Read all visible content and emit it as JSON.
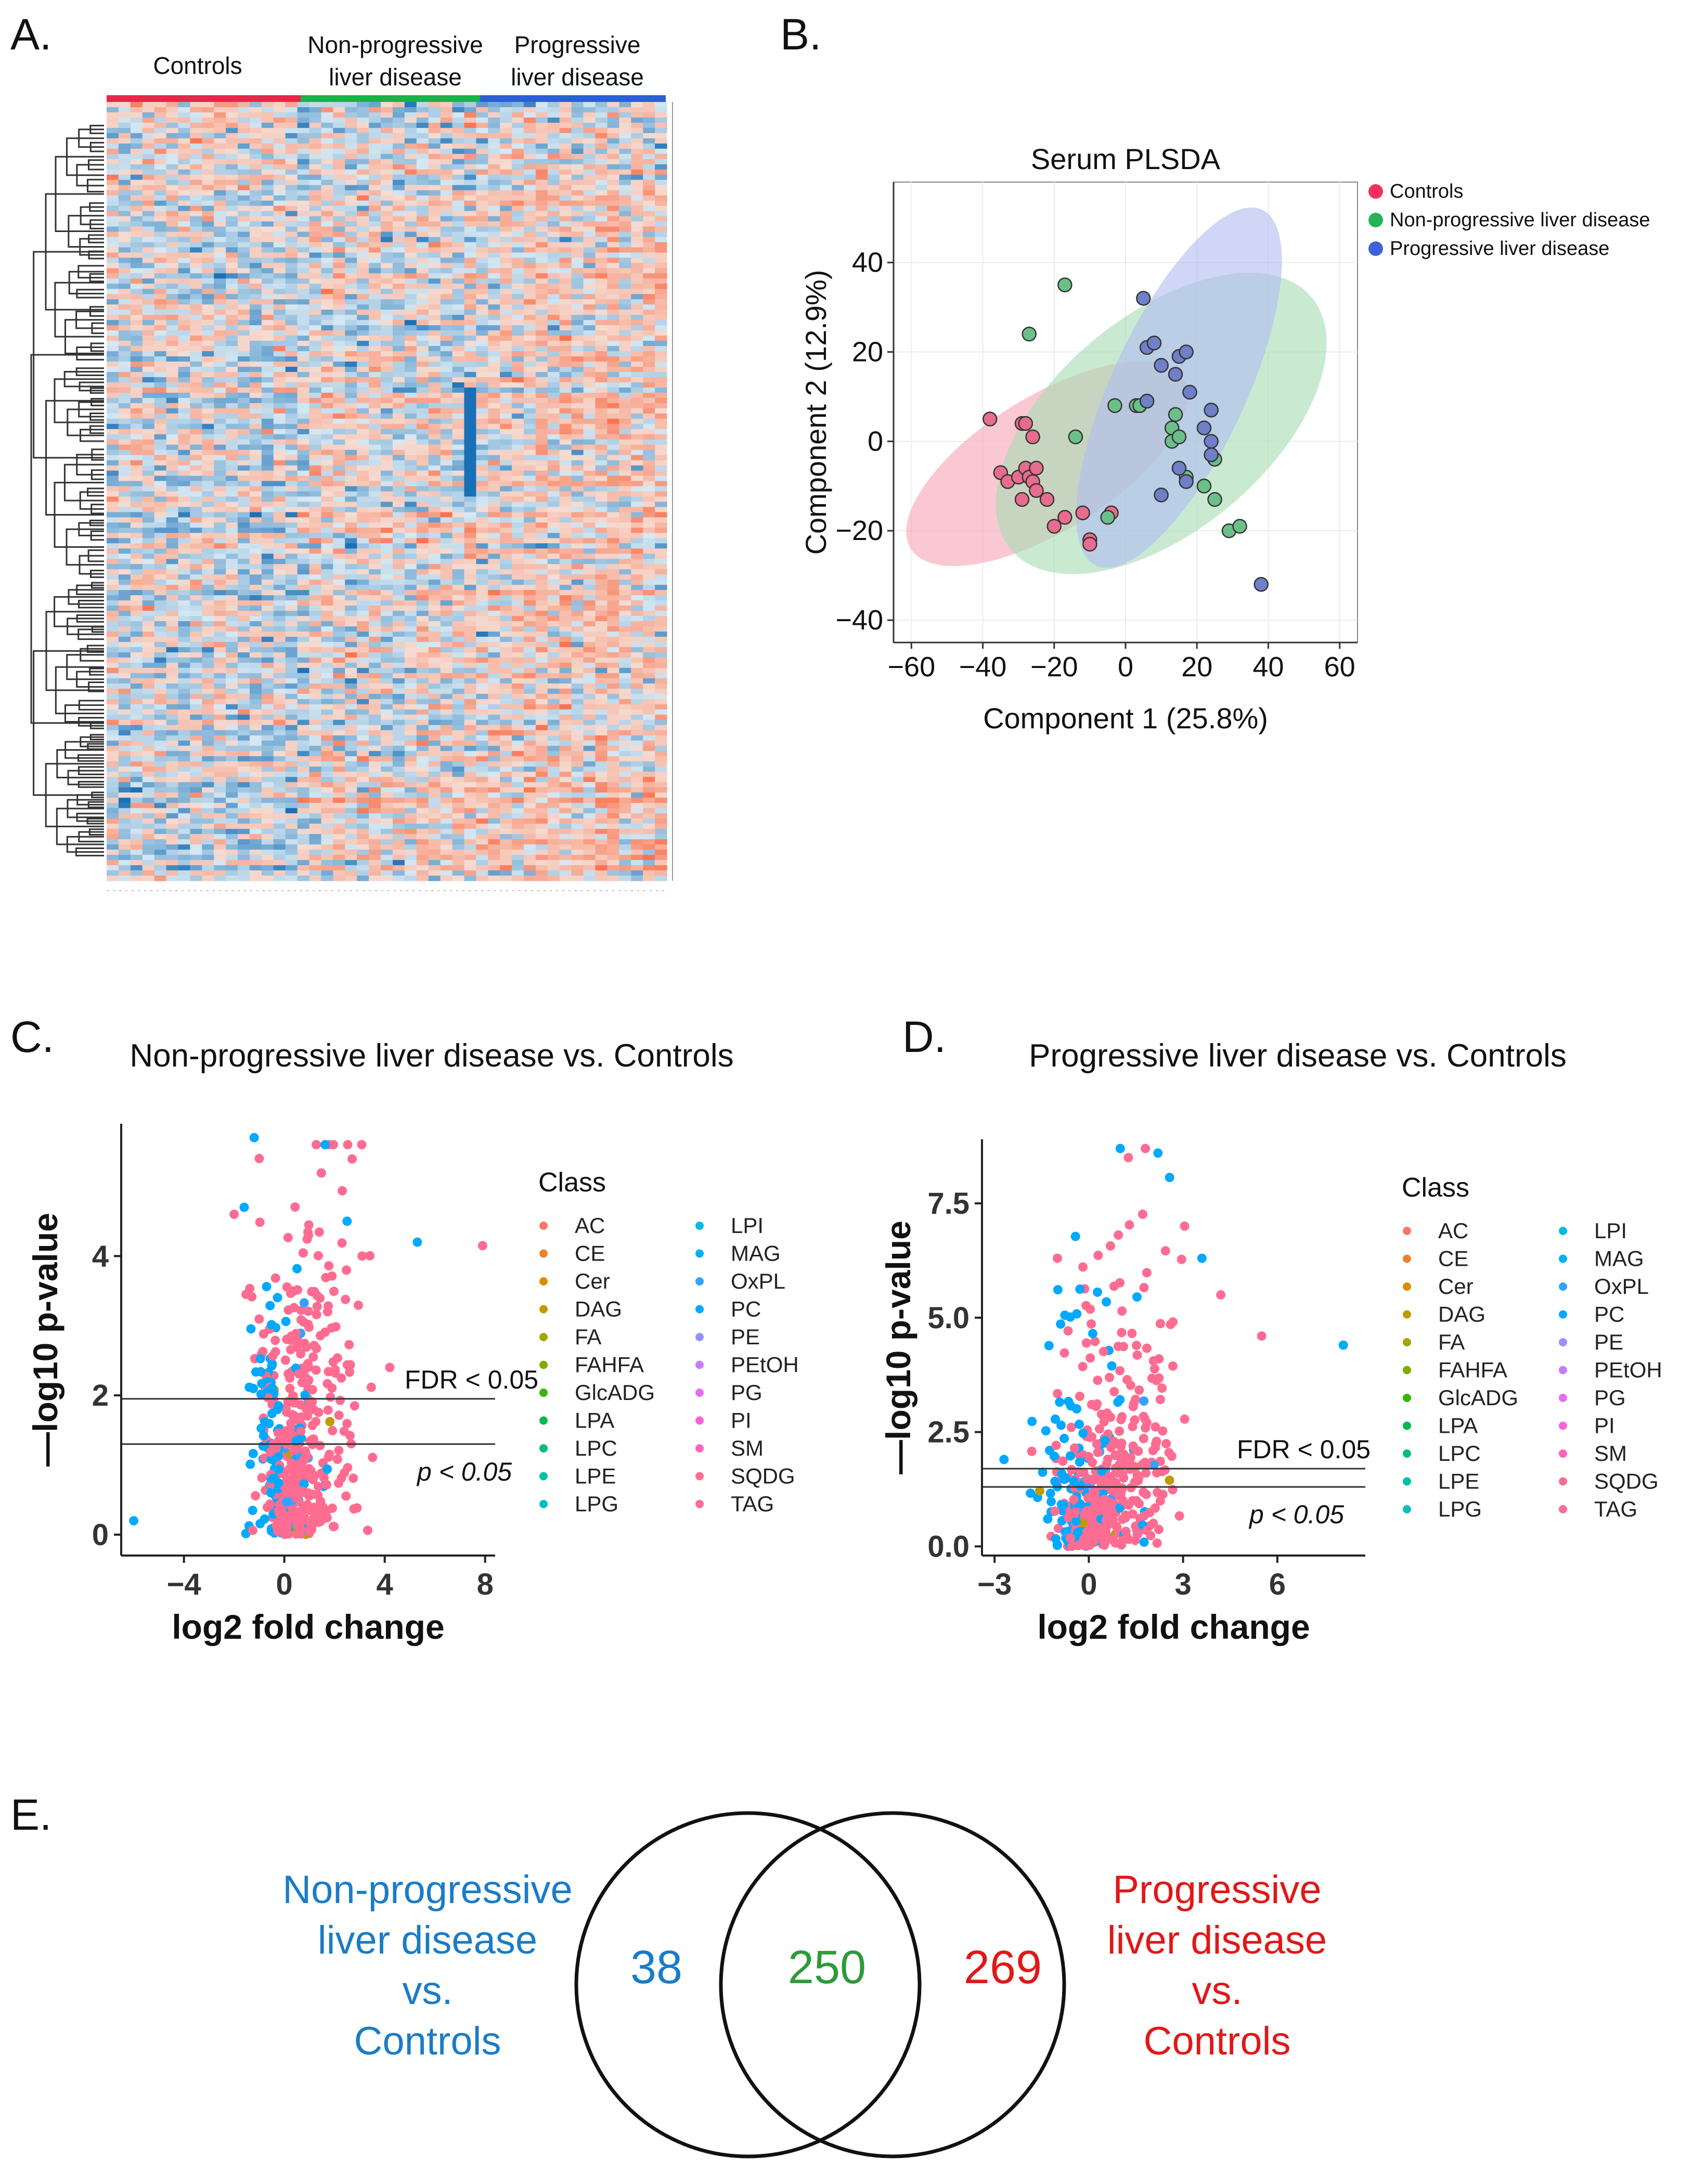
{
  "panels": {
    "a": {
      "label": "A.",
      "groups": [
        "Controls",
        "Non-progressive\nliver disease",
        "Progressive\nliver disease"
      ],
      "colors": [
        "#e8264a",
        "#1bb04a",
        "#2b5fd6"
      ]
    },
    "b": {
      "label": "B."
    },
    "c": {
      "label": "C."
    },
    "d": {
      "label": "D."
    },
    "e": {
      "label": "E."
    }
  },
  "chart_data": [
    {
      "id": "B",
      "type": "scatter",
      "title": "Serum PLSDA",
      "xlabel": "Component 1 (25.8%)",
      "ylabel": "Component 2 (12.9%)",
      "xlim": [
        -65,
        65
      ],
      "ylim": [
        -45,
        58
      ],
      "xticks": [
        "−60",
        "−40",
        "−20",
        "0",
        "20",
        "40",
        "60"
      ],
      "xtick_values": [
        -60,
        -40,
        -20,
        0,
        20,
        40,
        60
      ],
      "yticks": [
        "−40",
        "−20",
        "0",
        "20",
        "40"
      ],
      "ytick_values": [
        -40,
        -20,
        0,
        20,
        40
      ],
      "legend": [
        {
          "name": "Controls",
          "color": "#f2315f"
        },
        {
          "name": "Non-progressive liver disease",
          "color": "#23b455"
        },
        {
          "name": "Progressive liver disease",
          "color": "#3d63d9"
        }
      ],
      "series": [
        {
          "name": "Controls",
          "color": "#e86c8e",
          "ellipse": {
            "cx": -22,
            "cy": -5,
            "rx": 45,
            "ry": 15,
            "angle": -32
          },
          "points": [
            [
              -38,
              5
            ],
            [
              -29,
              4
            ],
            [
              -28,
              4
            ],
            [
              -26,
              1
            ],
            [
              -35,
              -7
            ],
            [
              -33,
              -9
            ],
            [
              -30,
              -8
            ],
            [
              -28,
              -6
            ],
            [
              -27,
              -8
            ],
            [
              -25,
              -6
            ],
            [
              -26,
              -9
            ],
            [
              -25,
              -11
            ],
            [
              -29,
              -13
            ],
            [
              -22,
              -13
            ],
            [
              -17,
              -17
            ],
            [
              -20,
              -19
            ],
            [
              -10,
              -22
            ],
            [
              -10,
              -23
            ],
            [
              -12,
              -16
            ],
            [
              -4,
              -16
            ]
          ]
        },
        {
          "name": "Non-progressive liver disease",
          "color": "#6bc08a",
          "ellipse": {
            "cx": 10,
            "cy": 4,
            "rx": 55,
            "ry": 24,
            "angle": -40
          },
          "points": [
            [
              -17,
              35
            ],
            [
              -27,
              24
            ],
            [
              -14,
              1
            ],
            [
              -3,
              8
            ],
            [
              3,
              8
            ],
            [
              4,
              8
            ],
            [
              13,
              3
            ],
            [
              14,
              6
            ],
            [
              13,
              0
            ],
            [
              15,
              1
            ],
            [
              17,
              -8
            ],
            [
              22,
              -10
            ],
            [
              25,
              -4
            ],
            [
              25,
              -13
            ],
            [
              29,
              -20
            ],
            [
              32,
              -19
            ],
            [
              -5,
              -17
            ]
          ]
        },
        {
          "name": "Progressive liver disease",
          "color": "#6f7fc8",
          "ellipse": {
            "cx": 15,
            "cy": 12,
            "rx": 55,
            "ry": 15,
            "angle": -65
          },
          "points": [
            [
              5,
              32
            ],
            [
              6,
              21
            ],
            [
              8,
              22
            ],
            [
              10,
              17
            ],
            [
              15,
              19
            ],
            [
              14,
              15
            ],
            [
              17,
              20
            ],
            [
              18,
              11
            ],
            [
              24,
              7
            ],
            [
              22,
              3
            ],
            [
              24,
              0
            ],
            [
              24,
              -3
            ],
            [
              15,
              -6
            ],
            [
              17,
              -9
            ],
            [
              10,
              -12
            ],
            [
              38,
              -32
            ],
            [
              6,
              9
            ]
          ]
        }
      ]
    },
    {
      "id": "C",
      "type": "scatter",
      "title": "Non-progressive liver disease vs. Controls",
      "xlabel": "log2 fold change",
      "ylabel": "—log10 p-value",
      "xlim": [
        -6.5,
        8.4
      ],
      "ylim": [
        -0.3,
        5.9
      ],
      "xticks": [
        "−4",
        "0",
        "4",
        "8"
      ],
      "xtick_values": [
        -4,
        0,
        4,
        8
      ],
      "yticks": [
        "0",
        "2",
        "4"
      ],
      "ytick_values": [
        0,
        2,
        4
      ],
      "thresholds": [
        {
          "label": "FDR < 0.05",
          "y": 1.95
        },
        {
          "label": "p < 0.05",
          "y": 1.3
        }
      ],
      "legend_title": "Class",
      "classes": [
        "AC",
        "CE",
        "Cer",
        "DAG",
        "FA",
        "FAHFA",
        "GlcADG",
        "LPA",
        "LPC",
        "LPE",
        "LPG",
        "LPI",
        "MAG",
        "OxPL",
        "PC",
        "PE",
        "PEtOH",
        "PG",
        "PI",
        "SM",
        "SQDG",
        "TAG"
      ],
      "highlights": [
        [
          -1.2,
          5.7
        ],
        [
          -1.0,
          5.4
        ],
        [
          -1.6,
          4.7
        ],
        [
          -2.0,
          4.6
        ],
        [
          5.3,
          4.2
        ],
        [
          7.9,
          4.15
        ],
        [
          -6.0,
          0.2
        ],
        [
          4.2,
          2.4
        ],
        [
          2.5,
          4.5
        ],
        [
          3.1,
          4.0
        ]
      ]
    },
    {
      "id": "D",
      "type": "scatter",
      "title": "Progressive liver disease vs. Controls",
      "xlabel": "log2 fold change",
      "ylabel": "—log10 p-value",
      "xlim": [
        -3.4,
        8.8
      ],
      "ylim": [
        -0.2,
        8.9
      ],
      "xticks": [
        "−3",
        "0",
        "3",
        "6"
      ],
      "xtick_values": [
        -3,
        0,
        3,
        6
      ],
      "yticks": [
        "0.0",
        "2.5",
        "5.0",
        "7.5"
      ],
      "ytick_values": [
        0,
        2.5,
        5.0,
        7.5
      ],
      "thresholds": [
        {
          "label": "FDR < 0.05",
          "y": 1.7
        },
        {
          "label": "p < 0.05",
          "y": 1.3
        }
      ],
      "legend_title": "Class",
      "classes": [
        "AC",
        "CE",
        "Cer",
        "DAG",
        "FA",
        "FAHFA",
        "GlcADG",
        "LPA",
        "LPC",
        "LPE",
        "LPG",
        "LPI",
        "MAG",
        "OxPL",
        "PC",
        "PE",
        "PEtOH",
        "PG",
        "PI",
        "SM",
        "SQDG",
        "TAG"
      ],
      "highlights": [
        [
          1.0,
          8.7
        ],
        [
          1.8,
          8.7
        ],
        [
          2.2,
          8.6
        ],
        [
          5.5,
          4.6
        ],
        [
          8.1,
          4.4
        ],
        [
          -1.0,
          6.3
        ],
        [
          3.6,
          6.3
        ],
        [
          4.2,
          5.5
        ],
        [
          -2.7,
          1.9
        ]
      ]
    }
  ],
  "volcano_class_colors": [
    "#f8766d",
    "#ea8331",
    "#d89000",
    "#c09b00",
    "#a3a500",
    "#7cae00",
    "#39b600",
    "#00bb4e",
    "#00bf7d",
    "#00c1a3",
    "#00bfc4",
    "#00bae0",
    "#00b0f6",
    "#35a2ff",
    "#00a9ff",
    "#9590ff",
    "#c77cff",
    "#e76bf3",
    "#fa62db",
    "#ff62bc",
    "#ff6c91",
    "#ff6c91"
  ],
  "venn": {
    "left_label": [
      "Non-progressive",
      "liver disease",
      "vs.",
      "Controls"
    ],
    "right_label": [
      "Progressive",
      "liver disease",
      "vs.",
      "Controls"
    ],
    "left_only": "38",
    "overlap": "250",
    "right_only": "269",
    "left_color": "#1a7cc7",
    "overlap_color": "#2e9a3a",
    "right_color": "#e01818"
  }
}
